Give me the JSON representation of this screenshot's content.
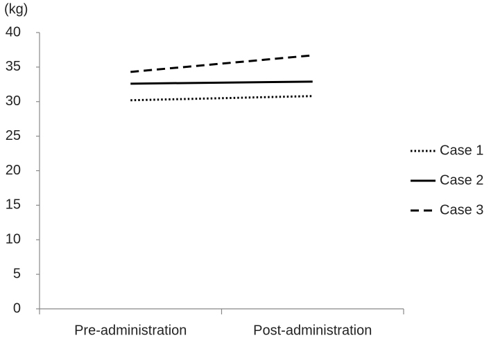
{
  "chart_data": {
    "type": "line",
    "y_unit_label": "(kg)",
    "categories": [
      "Pre-administration",
      "Post-administration"
    ],
    "series": [
      {
        "name": "Case 1",
        "color": "#000000",
        "linestyle": "dotted",
        "values": [
          30.2,
          30.8
        ]
      },
      {
        "name": "Case 2",
        "color": "#000000",
        "linestyle": "solid",
        "values": [
          32.6,
          32.9
        ]
      },
      {
        "name": "Case 3",
        "color": "#000000",
        "linestyle": "dashed",
        "values": [
          34.3,
          36.7
        ]
      }
    ],
    "ylim": [
      0,
      40
    ],
    "yticks": [
      0,
      5,
      10,
      15,
      20,
      25,
      30,
      35,
      40
    ],
    "grid": false,
    "legend": "right"
  }
}
